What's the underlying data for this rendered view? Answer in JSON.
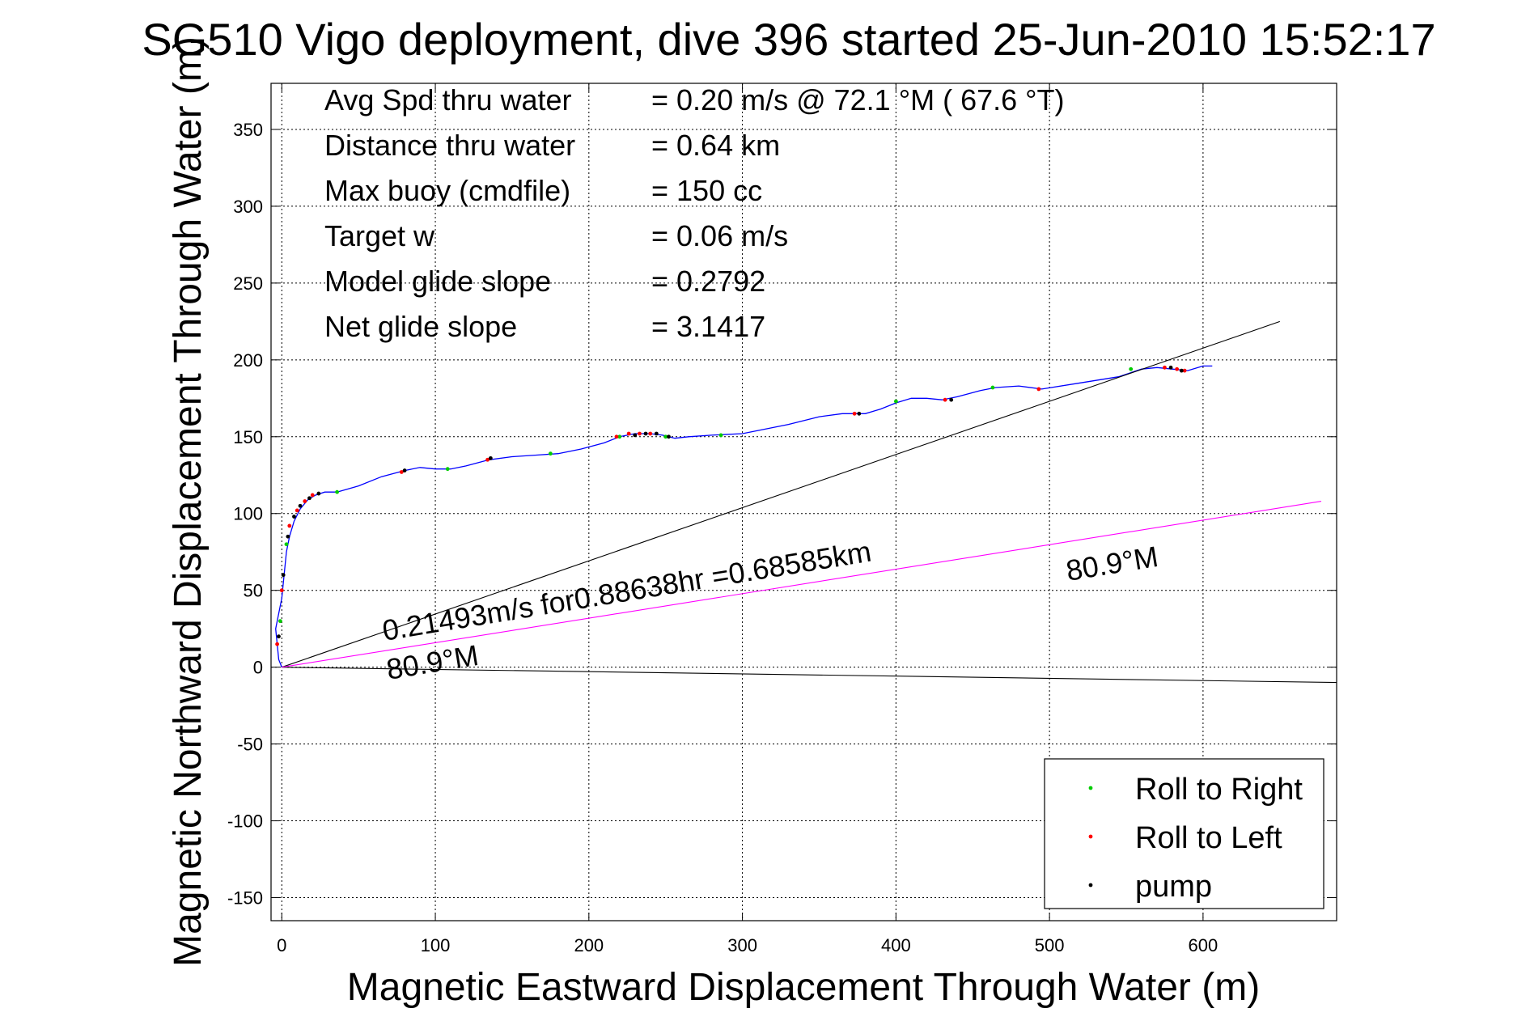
{
  "chart_data": {
    "type": "line",
    "title": "SG510 Vigo deployment, dive 396 started 25-Jun-2010 15:52:17",
    "xlabel": "Magnetic Eastward Displacement Through Water (m)",
    "ylabel": "Magnetic Northward Displacement Through Water (m)",
    "xlim": [
      -7,
      687
    ],
    "ylim": [
      -165,
      380
    ],
    "x_ticks": [
      0,
      100,
      200,
      300,
      400,
      500,
      600
    ],
    "y_ticks": [
      -150,
      -100,
      -50,
      0,
      50,
      100,
      150,
      200,
      250,
      300,
      350
    ],
    "grid": true,
    "stats": [
      {
        "label": "Avg Spd thru water",
        "value": "=  0.20 m/s @  72.1 °M ( 67.6 °T)"
      },
      {
        "label": "Distance thru water",
        "value": "=  0.64 km"
      },
      {
        "label": "Max buoy (cmdfile)",
        "value": "= 150 cc"
      },
      {
        "label": "Target w",
        "value": "= 0.06 m/s"
      },
      {
        "label": "Model glide slope",
        "value": "= 0.2792"
      },
      {
        "label": "Net glide slope",
        "value": "= 3.1417"
      }
    ],
    "annotations": {
      "current_label": "0.21493m/s for0.88638hr =0.68585km",
      "heading_label_near": "80.9°M",
      "heading_label_far": "80.9°M"
    },
    "legend": {
      "position": "bottom-right",
      "entries": [
        {
          "label": "Roll to Right",
          "color": "#00cc00"
        },
        {
          "label": "Roll to Left",
          "color": "#ff0000"
        },
        {
          "label": "pump",
          "color": "#000000"
        }
      ]
    },
    "series": [
      {
        "color": "#0000ff",
        "x": [
          0,
          -2,
          -3,
          -4,
          -2,
          0,
          1,
          2,
          3,
          5,
          8,
          12,
          17,
          22,
          28,
          36,
          50,
          65,
          80,
          90,
          100,
          110,
          120,
          135,
          150,
          165,
          180,
          195,
          210,
          220,
          230,
          240,
          248,
          256,
          265,
          280,
          300,
          330,
          350,
          365,
          380,
          390,
          400,
          410,
          420,
          430,
          440,
          455,
          465,
          480,
          495,
          520,
          545,
          560,
          570,
          580,
          590,
          600,
          606
        ],
        "y": [
          0,
          5,
          15,
          25,
          35,
          45,
          55,
          65,
          75,
          85,
          95,
          103,
          109,
          112,
          114,
          114,
          118,
          124,
          128,
          130,
          129,
          129,
          131,
          135,
          137,
          138,
          139,
          142,
          146,
          150,
          152,
          152,
          151,
          149,
          150,
          151,
          152,
          158,
          163,
          165,
          165,
          168,
          172,
          175,
          175,
          174,
          176,
          180,
          182,
          183,
          181,
          185,
          189,
          194,
          195,
          194,
          193,
          196,
          196
        ]
      },
      {
        "name": "Roll to Right",
        "style": "points",
        "color": "#00cc00",
        "x": [
          -1,
          3,
          36,
          108,
          175,
          220,
          250,
          286,
          400,
          463,
          553
        ],
        "y": [
          30,
          80,
          114,
          129,
          139,
          150,
          150,
          151,
          173,
          182,
          194
        ]
      },
      {
        "name": "Roll to Left",
        "style": "points",
        "color": "#ff0000",
        "x": [
          -3,
          0,
          5,
          10,
          15,
          20,
          78,
          134,
          218,
          226,
          233,
          240,
          373,
          432,
          493,
          575,
          583,
          588
        ],
        "y": [
          15,
          50,
          92,
          102,
          108,
          112,
          127,
          135,
          150,
          152,
          152,
          152,
          165,
          174,
          181,
          195,
          194,
          193
        ]
      },
      {
        "name": "pump",
        "style": "points",
        "color": "#000000",
        "x": [
          -2,
          1,
          4,
          8,
          12,
          18,
          24,
          80,
          136,
          230,
          237,
          244,
          252,
          376,
          436,
          579,
          586
        ],
        "y": [
          20,
          60,
          85,
          98,
          105,
          110,
          113,
          128,
          136,
          151,
          152,
          152,
          150,
          165,
          174,
          195,
          193
        ]
      },
      {
        "color": "#000000",
        "x": [
          0,
          650
        ],
        "y": [
          0,
          225
        ]
      },
      {
        "color": "#000000",
        "x": [
          0,
          687
        ],
        "y": [
          0,
          -10
        ]
      },
      {
        "color": "#ff00ff",
        "x": [
          0,
          677
        ],
        "y": [
          0,
          108
        ]
      }
    ]
  }
}
